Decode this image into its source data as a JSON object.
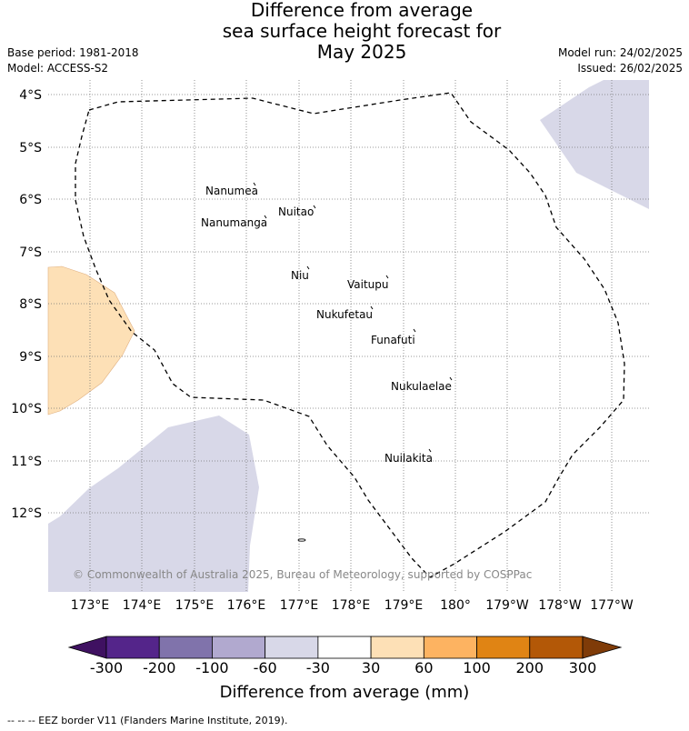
{
  "header": {
    "title_line1": "Difference from average",
    "title_line2": "sea surface height forecast for",
    "title_line3": "May 2025",
    "base_period": "Base period: 1981-2018",
    "model": "Model: ACCESS-S2",
    "model_run": "Model run: 24/02/2025",
    "issued": "Issued: 26/02/2025"
  },
  "map": {
    "lat_labels": [
      "4°S",
      "5°S",
      "6°S",
      "7°S",
      "8°S",
      "9°S",
      "10°S",
      "11°S",
      "12°S"
    ],
    "lon_labels": [
      "173°E",
      "174°E",
      "175°E",
      "176°E",
      "177°E",
      "178°E",
      "179°E",
      "180°",
      "179°W",
      "178°W",
      "177°W"
    ],
    "islands": [
      "Nanumea",
      "Nuitao",
      "Nanumanga",
      "Niu",
      "Vaitupu",
      "Nukufetau",
      "Funafuti",
      "Nukulaelae",
      "Nuilakita"
    ],
    "copyright": "© Commonwealth of Australia 2025, Bureau of Meteorology, supported by COSPPac",
    "colors": {
      "negative_light": "#d8d8e8",
      "positive_light": "#fde0b6",
      "eez_border": "#000000"
    }
  },
  "colorbar": {
    "ticks": [
      "-300",
      "-200",
      "-100",
      "-60",
      "-30",
      "30",
      "60",
      "100",
      "200",
      "300"
    ],
    "colors": [
      "#3f1161",
      "#54258a",
      "#8073ab",
      "#b1a9cf",
      "#d8d8e8",
      "#ffffff",
      "#fde0b6",
      "#fdb361",
      "#e08414",
      "#b35807",
      "#7f3b08"
    ],
    "title": "Difference from average (mm)"
  },
  "footer": {
    "legend_text": "--  --  -- EEZ border V11 (Flanders Marine Institute, 2019)."
  }
}
